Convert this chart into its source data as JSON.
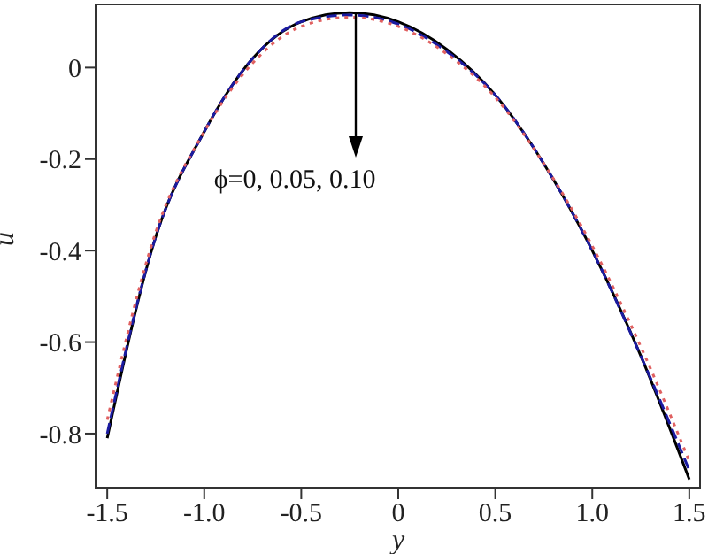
{
  "chart_data": {
    "type": "line",
    "xlabel": "y",
    "ylabel": "u",
    "annotations": [
      {
        "text": "ϕ=0, 0.05, 0.10",
        "x": -0.22,
        "y": 0.12
      }
    ],
    "x": [
      -1.5,
      -1.25,
      -1.0,
      -0.75,
      -0.5,
      -0.25,
      0,
      0.25,
      0.5,
      0.75,
      1.0,
      1.25,
      1.5
    ],
    "series": [
      {
        "color": "#000000",
        "line_style": "solid",
        "values": [
          -0.81,
          -0.37,
          -0.14,
          0.02,
          0.1,
          0.12,
          0.1,
          0.04,
          -0.06,
          -0.21,
          -0.4,
          -0.63,
          -0.9
        ]
      },
      {
        "color": "#1a1aa0",
        "line_style": "dashed",
        "values": [
          -0.8,
          -0.37,
          -0.14,
          0.02,
          0.1,
          0.115,
          0.095,
          0.035,
          -0.06,
          -0.21,
          -0.4,
          -0.63,
          -0.88
        ]
      },
      {
        "color": "#e06060",
        "line_style": "dotted",
        "values": [
          -0.77,
          -0.36,
          -0.14,
          0.01,
          0.09,
          0.11,
          0.09,
          0.03,
          -0.065,
          -0.21,
          -0.39,
          -0.61,
          -0.86
        ]
      }
    ],
    "xlim": [
      -1.56,
      1.56
    ],
    "ylim": [
      -0.92,
      0.14
    ],
    "xticks": [
      -1.5,
      {
        "value": -1,
        "label": "-1.0"
      },
      -0.5,
      0,
      0.5,
      {
        "value": 1,
        "label": "1.0"
      },
      1.5
    ],
    "yticks": [
      -0.8,
      -0.6,
      -0.4,
      -0.2,
      0
    ],
    "grid": false,
    "legend": false,
    "marker": "none"
  }
}
